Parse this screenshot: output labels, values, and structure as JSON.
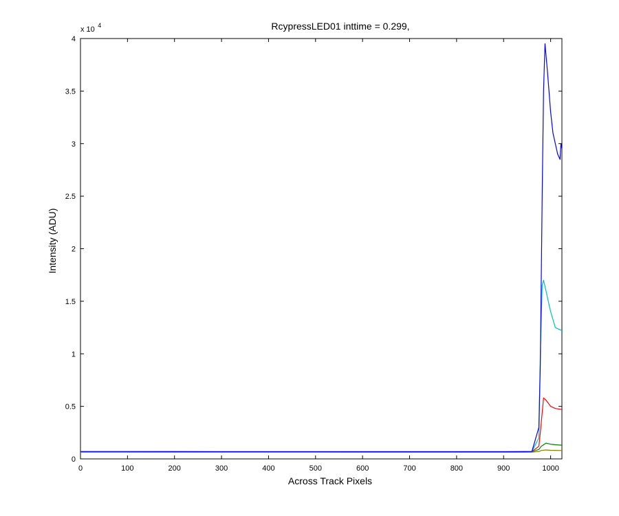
{
  "chart_data": {
    "type": "line",
    "title": "RcypressLED01 inttime = 0.299,",
    "xlabel": "Across Track Pixels",
    "ylabel": "Intensity (ADU)",
    "xlim": [
      0,
      1024
    ],
    "ylim": [
      0,
      40000
    ],
    "y_exponent_label": "x 10",
    "y_exponent_power": "4",
    "x_ticks": [
      0,
      100,
      200,
      300,
      400,
      500,
      600,
      700,
      800,
      900,
      1000
    ],
    "x_tick_labels": [
      "0",
      "100",
      "200",
      "300",
      "400",
      "500",
      "600",
      "700",
      "800",
      "900",
      "1000"
    ],
    "y_ticks": [
      0,
      5000,
      10000,
      15000,
      20000,
      25000,
      30000,
      35000,
      40000
    ],
    "y_tick_labels": [
      "0",
      "0.5",
      "1",
      "1.5",
      "2",
      "2.5",
      "3",
      "3.5",
      "4"
    ],
    "grid": false,
    "series": [
      {
        "color": "#7f7f00",
        "x": [
          0,
          100,
          200,
          300,
          400,
          500,
          600,
          700,
          800,
          900,
          960,
          975,
          980,
          990,
          1000,
          1010,
          1024
        ],
        "y": [
          650,
          650,
          645,
          640,
          640,
          640,
          635,
          635,
          635,
          635,
          640,
          700,
          800,
          850,
          820,
          810,
          800
        ]
      },
      {
        "color": "#008000",
        "x": [
          0,
          100,
          200,
          300,
          400,
          500,
          600,
          700,
          800,
          900,
          960,
          975,
          980,
          990,
          1000,
          1010,
          1024
        ],
        "y": [
          680,
          680,
          675,
          670,
          670,
          670,
          665,
          665,
          665,
          665,
          680,
          900,
          1200,
          1500,
          1400,
          1350,
          1300
        ]
      },
      {
        "color": "#ff0000",
        "x": [
          0,
          100,
          200,
          300,
          400,
          500,
          600,
          700,
          800,
          900,
          960,
          975,
          978,
          985,
          990,
          1000,
          1010,
          1024
        ],
        "y": [
          680,
          680,
          675,
          670,
          670,
          670,
          665,
          665,
          665,
          665,
          700,
          1200,
          2500,
          5800,
          5600,
          5000,
          4800,
          4700
        ]
      },
      {
        "color": "#00bfbf",
        "x": [
          0,
          100,
          200,
          300,
          400,
          500,
          600,
          700,
          800,
          900,
          960,
          975,
          978,
          982,
          985,
          990,
          1000,
          1010,
          1024
        ],
        "y": [
          700,
          700,
          695,
          690,
          690,
          690,
          685,
          685,
          685,
          685,
          700,
          2000,
          10000,
          16500,
          17000,
          16000,
          14000,
          12500,
          12200
        ]
      },
      {
        "color": "#0000ff",
        "x": [
          0,
          100,
          200,
          300,
          400,
          500,
          600,
          700,
          800,
          900,
          960,
          975,
          978,
          982,
          985,
          988,
          993,
          1000,
          1005,
          1010,
          1015,
          1020,
          1022,
          1024
        ],
        "y": [
          700,
          700,
          695,
          690,
          690,
          690,
          685,
          685,
          685,
          685,
          700,
          3000,
          9000,
          25000,
          35000,
          39500,
          37000,
          33000,
          31000,
          30000,
          29000,
          28500,
          30000,
          29500
        ]
      }
    ]
  }
}
